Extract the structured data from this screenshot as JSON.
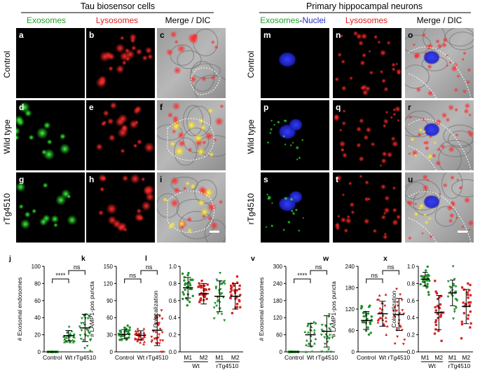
{
  "headers": {
    "left": "Tau biosensor cells",
    "right": "Primary hippocampal neurons"
  },
  "columns": {
    "left": [
      {
        "text": "Exosomes",
        "color": "#22a02a"
      },
      {
        "text": "Lysosomes",
        "color": "#e02020"
      },
      {
        "text": "Merge / DIC",
        "color": "#000000"
      }
    ],
    "right_exo": {
      "text": "Exosomes",
      "color": "#22a02a"
    },
    "right_dash": "-",
    "right_nuc": {
      "text": "Nuclei",
      "color": "#2030d0"
    },
    "right_other": [
      {
        "text": "Lysosomes",
        "color": "#e02020"
      },
      {
        "text": "Merge / DIC",
        "color": "#000000"
      }
    ]
  },
  "row_labels": [
    "Control",
    "Wild type",
    "rTg4510"
  ],
  "panel_letters": [
    "a",
    "b",
    "c",
    "d",
    "e",
    "f",
    "g",
    "h",
    "i",
    "m",
    "n",
    "o",
    "p",
    "q",
    "r",
    "s",
    "t",
    "u"
  ],
  "colors": {
    "green": "#1f8f2a",
    "red": "#d42020",
    "darkred": "#c01818"
  },
  "chart_data": [
    {
      "label": "j",
      "type": "scatter",
      "ylabel": "# Exosomal endosomes",
      "ylim": [
        0,
        100
      ],
      "yticks": [
        "0",
        "20",
        "40",
        "60",
        "80",
        "100"
      ],
      "categories": [
        "Control",
        "Wt",
        "rTg4510"
      ],
      "means": [
        0,
        19,
        28
      ],
      "sd": [
        0,
        6,
        16
      ],
      "n": [
        25,
        30,
        30
      ],
      "sig": [
        {
          "text": "****"
        },
        {
          "text": "ns"
        }
      ]
    },
    {
      "label": "k",
      "type": "scatter",
      "ylabel": "# LAMP1-pos puncta",
      "ylim": [
        0,
        150
      ],
      "yticks": [
        "0",
        "30",
        "60",
        "90",
        "120",
        "150"
      ],
      "categories": [
        "Control",
        "Wt",
        "rTg4510"
      ],
      "means": [
        31,
        29,
        38
      ],
      "sd": [
        8,
        8,
        27
      ],
      "n": [
        30,
        30,
        30
      ],
      "sig": [
        {
          "text": "ns"
        },
        {
          "text": "ns"
        }
      ]
    },
    {
      "label": "l",
      "type": "scatter",
      "ylabel": "Colocalization",
      "ylim": [
        0,
        1.0
      ],
      "yticks": [
        "0.0",
        "0.2",
        "0.4",
        "0.6",
        "0.8",
        "1.0"
      ],
      "categories": [
        "M1",
        "M2",
        "M1",
        "M2"
      ],
      "groups": [
        "Wt",
        "rTg4510"
      ],
      "means": [
        0.75,
        0.68,
        0.65,
        0.65
      ],
      "sd": [
        0.12,
        0.12,
        0.18,
        0.15
      ],
      "n": [
        30,
        30,
        30,
        30
      ]
    },
    {
      "label": "v",
      "type": "scatter",
      "ylabel": "# Exosomal endosomes",
      "ylim": [
        0,
        300
      ],
      "yticks": [
        "0",
        "60",
        "120",
        "180",
        "240",
        "300"
      ],
      "categories": [
        "Control",
        "Wt",
        "rTg4510"
      ],
      "means": [
        0,
        60,
        72
      ],
      "sd": [
        0,
        40,
        55
      ],
      "n": [
        25,
        25,
        25
      ],
      "sig": [
        {
          "text": "****"
        },
        {
          "text": "ns"
        }
      ]
    },
    {
      "label": "w",
      "type": "scatter",
      "ylabel": "# LAMP1-pos puncta",
      "ylim": [
        0,
        240
      ],
      "yticks": [
        "0",
        "60",
        "120",
        "180",
        "240"
      ],
      "categories": [
        "Control",
        "Wt",
        "rTg4510"
      ],
      "means": [
        88,
        107,
        105
      ],
      "sd": [
        25,
        35,
        45
      ],
      "n": [
        25,
        25,
        25
      ],
      "sig": [
        {
          "text": "ns"
        },
        {
          "text": "ns"
        }
      ]
    },
    {
      "label": "x",
      "type": "scatter",
      "ylabel": "Colocalization",
      "ylim": [
        0,
        1.0
      ],
      "yticks": [
        "0.0",
        "0.2",
        "0.4",
        "0.6",
        "0.8",
        "1.0"
      ],
      "categories": [
        "M1",
        "M2",
        "M1",
        "M2"
      ],
      "groups": [
        "Wt",
        "rTg4510"
      ],
      "means": [
        0.85,
        0.46,
        0.69,
        0.53
      ],
      "sd": [
        0.08,
        0.2,
        0.15,
        0.2
      ],
      "n": [
        25,
        25,
        25,
        25
      ]
    }
  ]
}
